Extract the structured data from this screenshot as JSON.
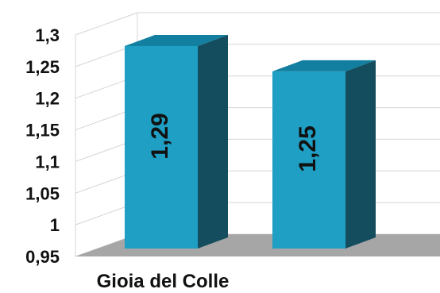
{
  "chart_data": {
    "type": "bar",
    "categories": [
      "Gioia del Colle",
      ""
    ],
    "values": [
      1.29,
      1.25
    ],
    "data_labels": [
      "1,29",
      "1,25"
    ],
    "ylim": [
      0.95,
      1.3
    ],
    "y_ticks": [
      "0,95",
      "1",
      "1,05",
      "1,1",
      "1,15",
      "1,2",
      "1,25",
      "1,3"
    ],
    "title": "",
    "xlabel": "",
    "ylabel": "",
    "grid": true,
    "legend": "none",
    "colors": {
      "bar_front": "#1f9fc4",
      "bar_side": "#134d5e",
      "bar_top": "#137fa0",
      "floor": "#a6a6a6",
      "grid": "#d4d4d4"
    }
  }
}
